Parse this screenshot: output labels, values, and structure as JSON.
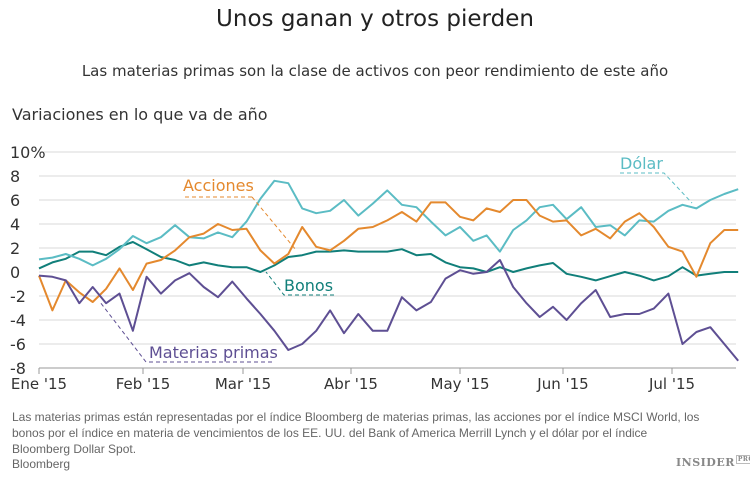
{
  "header": {
    "title": "Unos ganan y otros pierden",
    "subtitle": "Las materias primas son la clase de activos con peor rendimiento de este año",
    "chart_heading": "Variaciones en lo que va de año"
  },
  "footer": {
    "note": "Las materias primas están representadas por el índice Bloomberg de materias primas, las acciones por el índice MSCI World, los bonos por el índice en materia de vencimientos de los EE. UU. del Bank of America Merrill Lynch y el dólar por el índice Bloomberg Dollar Spot.",
    "source": "Bloomberg",
    "logo": "INSIDER",
    "logo_badge": "PRO"
  },
  "chart_data": {
    "type": "line",
    "title": "Variaciones en lo que va de año",
    "ylim": [
      -8,
      10
    ],
    "yticks": [
      -8,
      -6,
      -4,
      -2,
      0,
      2,
      4,
      6,
      8,
      10
    ],
    "ytick_labels": [
      "-8",
      "-6",
      "-4",
      "-2",
      "0",
      "2",
      "4",
      "6",
      "8",
      "10%"
    ],
    "xticks": [
      "2015-01-01",
      "2015-02-01",
      "2015-03-01",
      "2015-04-01",
      "2015-05-01",
      "2015-06-01",
      "2015-07-01"
    ],
    "xtick_labels": [
      "Ene '15",
      "Feb '15",
      "Mar '15",
      "Abr '15",
      "May '15",
      "Jun '15",
      "Jul '15"
    ],
    "grid": true,
    "legend": "inline labels",
    "x": [
      "2015-01-01",
      "2015-01-05",
      "2015-01-09",
      "2015-01-13",
      "2015-01-17",
      "2015-01-21",
      "2015-01-25",
      "2015-01-29",
      "2015-02-02",
      "2015-02-06",
      "2015-02-10",
      "2015-02-14",
      "2015-02-18",
      "2015-02-22",
      "2015-02-26",
      "2015-03-02",
      "2015-03-06",
      "2015-03-10",
      "2015-03-14",
      "2015-03-18",
      "2015-03-22",
      "2015-03-26",
      "2015-03-30",
      "2015-04-03",
      "2015-04-07",
      "2015-04-11",
      "2015-04-15",
      "2015-04-19",
      "2015-04-23",
      "2015-04-27",
      "2015-05-01",
      "2015-05-05",
      "2015-05-09",
      "2015-05-13",
      "2015-05-17",
      "2015-05-21",
      "2015-05-25",
      "2015-05-29",
      "2015-06-02",
      "2015-06-06",
      "2015-06-10",
      "2015-06-14",
      "2015-06-18",
      "2015-06-22",
      "2015-06-26",
      "2015-06-30",
      "2015-07-04",
      "2015-07-08",
      "2015-07-12",
      "2015-07-16",
      "2015-07-20"
    ],
    "series": [
      {
        "name": "Dólar",
        "color": "#5bbcc4",
        "values": [
          1.05,
          1.2,
          1.5,
          1.1,
          0.55,
          1.1,
          1.9,
          3.0,
          2.4,
          2.9,
          3.9,
          2.9,
          2.8,
          3.3,
          2.9,
          4.2,
          6.1,
          7.6,
          7.4,
          5.3,
          4.9,
          5.1,
          6.0,
          4.7,
          5.7,
          6.8,
          5.6,
          5.4,
          4.2,
          3.05,
          3.75,
          2.6,
          3.05,
          1.7,
          3.5,
          4.3,
          5.4,
          5.6,
          4.4,
          5.4,
          3.75,
          3.9,
          3.05,
          4.3,
          4.2,
          5.1,
          5.6,
          5.3,
          6.0,
          6.5,
          6.9
        ]
      },
      {
        "name": "Acciones",
        "color": "#e4892e",
        "values": [
          -0.3,
          -3.2,
          -0.7,
          -1.7,
          -2.5,
          -1.4,
          0.3,
          -1.5,
          0.7,
          1.0,
          1.8,
          2.9,
          3.2,
          4.0,
          3.5,
          3.6,
          1.8,
          0.7,
          1.5,
          3.75,
          2.1,
          1.8,
          2.6,
          3.6,
          3.75,
          4.3,
          5.0,
          4.2,
          5.8,
          5.8,
          4.6,
          4.3,
          5.3,
          5.0,
          6.0,
          6.0,
          4.7,
          4.2,
          4.3,
          3.05,
          3.6,
          2.8,
          4.2,
          4.9,
          3.75,
          2.1,
          1.7,
          -0.4,
          2.4,
          3.5,
          3.5
        ]
      },
      {
        "name": "Bonos",
        "color": "#117f7a",
        "values": [
          0.3,
          0.8,
          1.1,
          1.7,
          1.7,
          1.4,
          2.1,
          2.5,
          1.9,
          1.25,
          1.0,
          0.55,
          0.8,
          0.55,
          0.4,
          0.4,
          0,
          0.55,
          1.25,
          1.4,
          1.7,
          1.7,
          1.8,
          1.7,
          1.7,
          1.7,
          1.9,
          1.4,
          1.5,
          0.8,
          0.4,
          0.3,
          0,
          0.4,
          0,
          0.3,
          0.55,
          0.75,
          -0.15,
          -0.4,
          -0.7,
          -0.35,
          0,
          -0.3,
          -0.7,
          -0.35,
          0.4,
          -0.3,
          -0.15,
          0,
          0
        ]
      },
      {
        "name": "Materias primas",
        "color": "#5e4f93",
        "values": [
          -0.3,
          -0.4,
          -0.7,
          -2.6,
          -1.25,
          -2.6,
          -1.8,
          -4.9,
          -0.4,
          -1.8,
          -0.7,
          -0.1,
          -1.25,
          -2.1,
          -0.8,
          -2.2,
          -3.5,
          -4.9,
          -6.5,
          -6.0,
          -4.9,
          -3.2,
          -5.1,
          -3.5,
          -4.9,
          -4.9,
          -2.1,
          -3.2,
          -2.5,
          -0.55,
          0.15,
          -0.15,
          0,
          1.0,
          -1.25,
          -2.6,
          -3.75,
          -2.9,
          -4.0,
          -2.6,
          -1.5,
          -3.75,
          -3.5,
          -3.5,
          -3.05,
          -1.8,
          -6.0,
          -5.0,
          -4.6,
          -6.0,
          -7.4
        ]
      }
    ]
  }
}
